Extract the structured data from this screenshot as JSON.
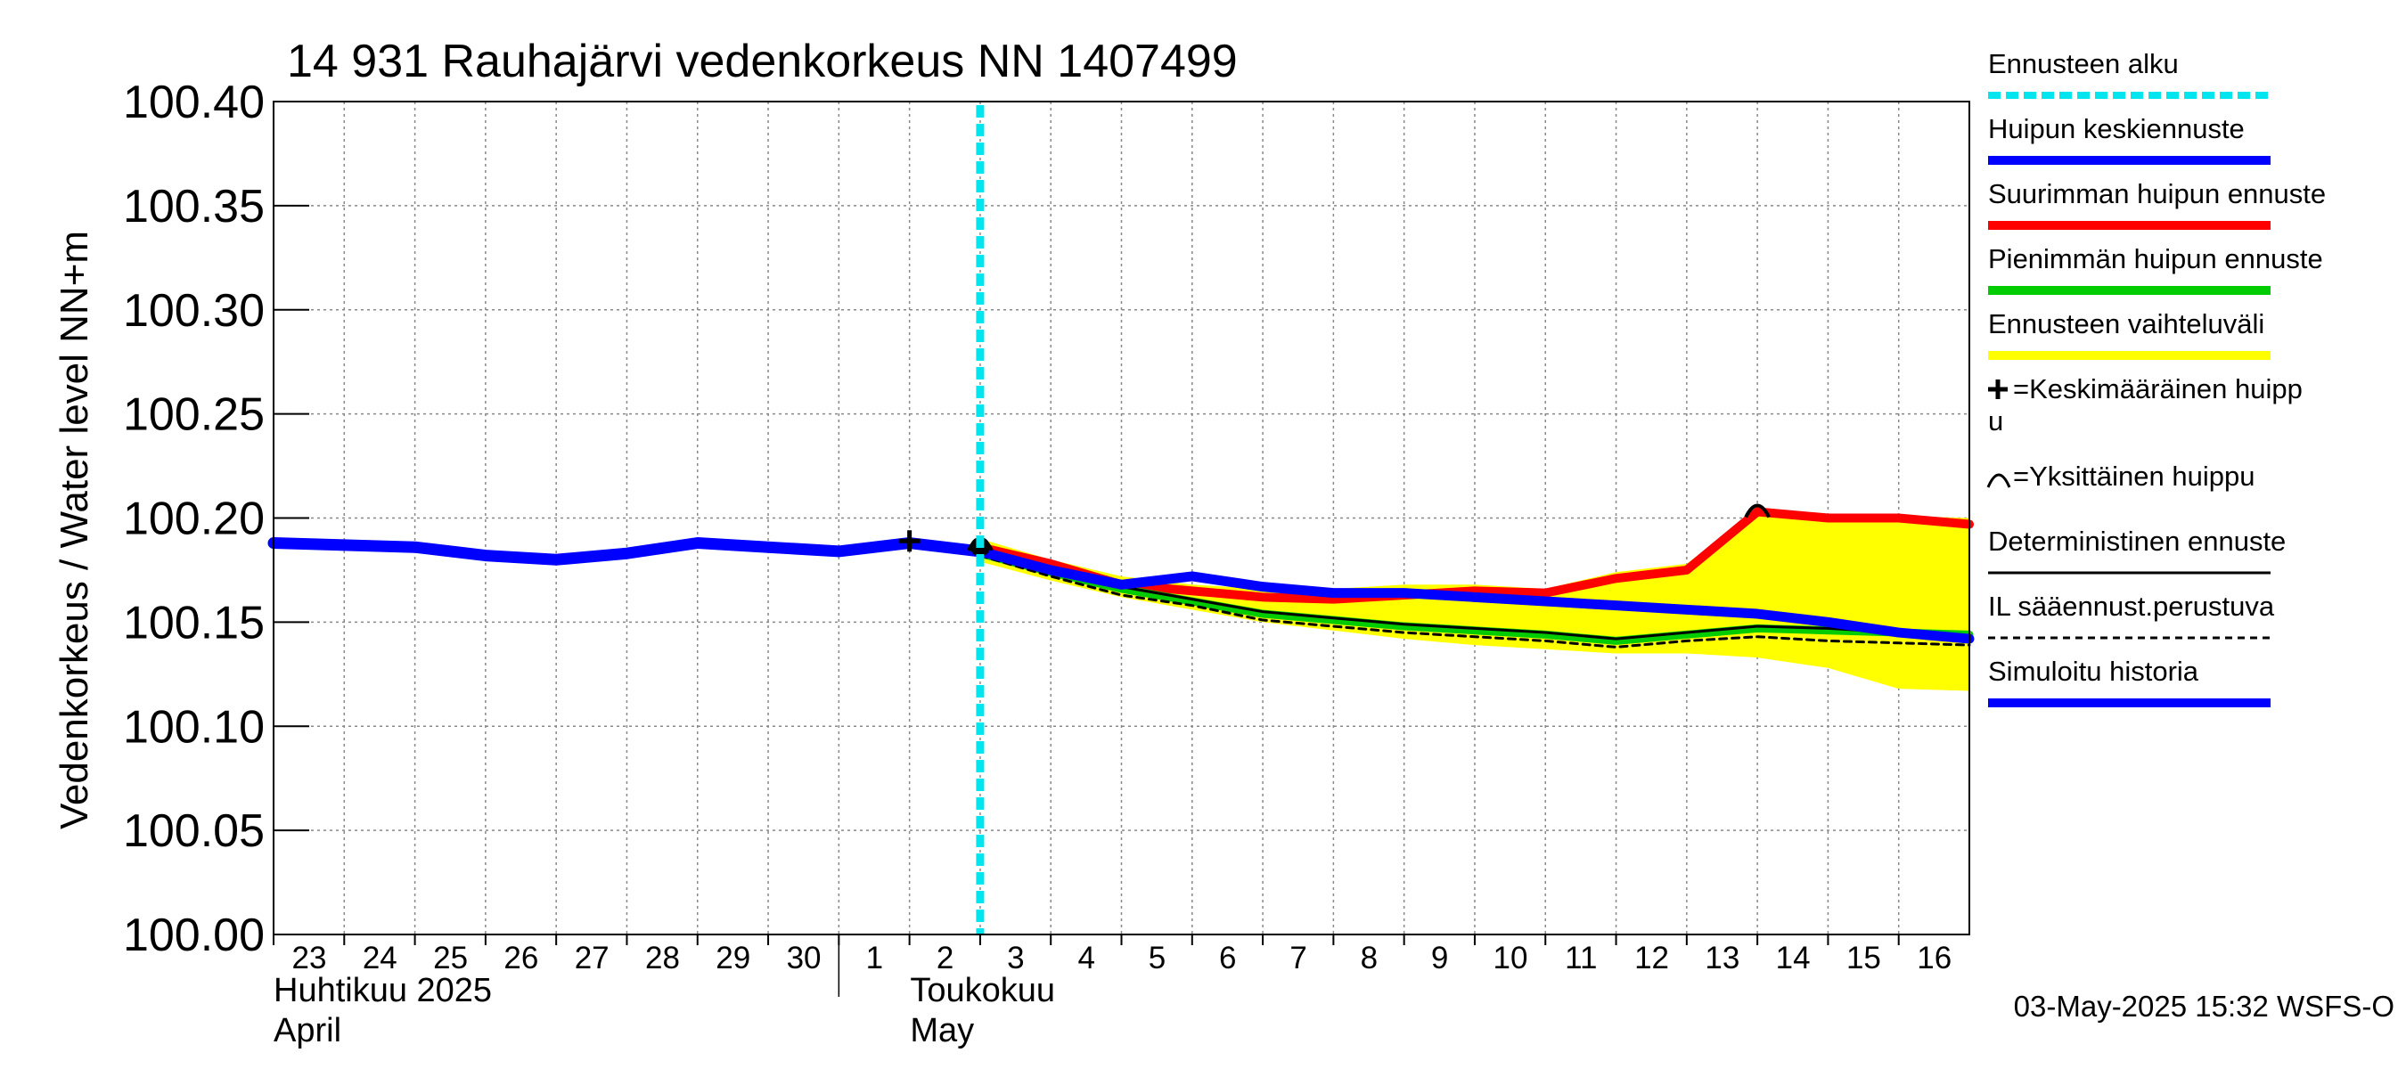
{
  "chart_data": {
    "type": "line",
    "title": "14 931 Rauhajärvi vedenkorkeus NN 1407499",
    "ylabel": "Vedenkorkeus / Water level    NN+m",
    "ylim": [
      100.0,
      100.4
    ],
    "xlim": [
      0,
      24
    ],
    "y_ticks": [
      "100.00",
      "100.05",
      "100.10",
      "100.15",
      "100.20",
      "100.25",
      "100.30",
      "100.35",
      "100.40"
    ],
    "x_day_labels": [
      "23",
      "24",
      "25",
      "26",
      "27",
      "28",
      "29",
      "30",
      "1",
      "2",
      "3",
      "4",
      "5",
      "6",
      "7",
      "8",
      "9",
      "10",
      "11",
      "12",
      "13",
      "14",
      "15",
      "16"
    ],
    "month_labels": [
      {
        "fi": "Huhtikuu  2025",
        "en": "April",
        "start_day": 0
      },
      {
        "fi": "Toukokuu",
        "en": "May",
        "start_day": 8
      }
    ],
    "forecast_start": 10.0,
    "series": [
      {
        "name": "Simuloitu historia",
        "color": "#0000ff",
        "x": [
          0,
          1,
          2,
          3,
          4,
          5,
          6,
          7,
          8,
          9,
          10
        ],
        "y": [
          100.188,
          100.187,
          100.186,
          100.182,
          100.18,
          100.183,
          100.188,
          100.186,
          100.184,
          100.188,
          100.184
        ]
      },
      {
        "name": "Huipun keskiennuste",
        "color": "#0000ff",
        "x": [
          10,
          11,
          12,
          13,
          14,
          15,
          16,
          17,
          18,
          19,
          20,
          21,
          22,
          23,
          24
        ],
        "y": [
          100.184,
          100.175,
          100.168,
          100.172,
          100.167,
          100.164,
          100.164,
          100.162,
          100.16,
          100.158,
          100.156,
          100.154,
          100.15,
          100.145,
          100.142
        ]
      },
      {
        "name": "Suurimman huipun ennuste",
        "color": "#ff0000",
        "x": [
          10,
          11,
          12,
          13,
          14,
          15,
          16,
          17,
          18,
          19,
          20,
          21,
          22,
          23,
          24
        ],
        "y": [
          100.186,
          100.178,
          100.168,
          100.165,
          100.162,
          100.161,
          100.163,
          100.165,
          100.164,
          100.171,
          100.175,
          100.203,
          100.2,
          100.2,
          100.197
        ]
      },
      {
        "name": "Pienimmän huipun ennuste",
        "color": "#00cc00",
        "x": [
          10,
          11,
          12,
          13,
          14,
          15,
          16,
          17,
          18,
          19,
          20,
          21,
          22,
          23,
          24
        ],
        "y": [
          100.183,
          100.174,
          100.166,
          100.16,
          100.154,
          100.151,
          100.148,
          100.146,
          100.144,
          100.141,
          100.144,
          100.147,
          100.146,
          100.145,
          100.144
        ]
      },
      {
        "name": "Deterministinen ennuste",
        "color": "#000000",
        "x": [
          10,
          11,
          12,
          13,
          14,
          15,
          16,
          17,
          18,
          19,
          20,
          21,
          22,
          23,
          24
        ],
        "y": [
          100.183,
          100.175,
          100.167,
          100.161,
          100.155,
          100.152,
          100.149,
          100.147,
          100.145,
          100.142,
          100.145,
          100.148,
          100.147,
          100.145,
          100.143
        ]
      },
      {
        "name": "IL sääennust.perustuva",
        "color": "#000000",
        "dashed": true,
        "x": [
          10,
          11,
          12,
          13,
          14,
          15,
          16,
          17,
          18,
          19,
          20,
          21,
          22,
          23,
          24
        ],
        "y": [
          100.182,
          100.172,
          100.163,
          100.158,
          100.151,
          100.148,
          100.145,
          100.143,
          100.141,
          100.138,
          100.141,
          100.143,
          100.141,
          100.14,
          100.139
        ]
      }
    ],
    "band": {
      "name": "Ennusteen vaihteluväli",
      "color": "#ffff00",
      "x": [
        10,
        11,
        12,
        13,
        14,
        15,
        16,
        17,
        18,
        19,
        20,
        21,
        22,
        23,
        24
      ],
      "upper": [
        100.19,
        100.18,
        100.172,
        100.168,
        100.166,
        100.166,
        100.168,
        100.168,
        100.166,
        100.174,
        100.178,
        100.204,
        100.202,
        100.201,
        100.2
      ],
      "lower": [
        100.179,
        100.17,
        100.162,
        100.156,
        100.15,
        100.146,
        100.142,
        100.139,
        100.137,
        100.135,
        100.135,
        100.133,
        100.128,
        100.118,
        100.117
      ]
    },
    "markers": [
      {
        "type": "mean_peak",
        "x": 9.0,
        "y": 100.189
      },
      {
        "type": "single_peak",
        "x": 10.0,
        "y": 100.187
      },
      {
        "type": "single_peak",
        "x": 21.0,
        "y": 100.203
      }
    ],
    "legend": [
      {
        "label": "Ennusteen alku",
        "style": "dotted",
        "color": "#00e5ee"
      },
      {
        "label": "Huipun keskiennuste",
        "style": "solid",
        "color": "#0000ff"
      },
      {
        "label": "Suurimman huipun ennuste",
        "style": "solid",
        "color": "#ff0000"
      },
      {
        "label": "Pienimmän huipun ennuste",
        "style": "solid",
        "color": "#00cc00"
      },
      {
        "label": "Ennusteen vaihteluväli",
        "style": "solid",
        "color": "#ffff00"
      },
      {
        "label": "=Keskimääräinen huipp",
        "label2": "u",
        "style": "symbol-plus",
        "color": "#000000"
      },
      {
        "label": "=Yksittäinen huippu",
        "style": "symbol-arc",
        "color": "#000000"
      },
      {
        "label": "Deterministinen ennuste",
        "style": "solid-thin",
        "color": "#000000"
      },
      {
        "label": "IL sääennust.perustuva",
        "style": "dashed",
        "color": "#000000"
      },
      {
        "label": "Simuloitu historia",
        "style": "solid",
        "color": "#0000ff"
      }
    ],
    "timestamp": "03-May-2025 15:32 WSFS-O"
  }
}
